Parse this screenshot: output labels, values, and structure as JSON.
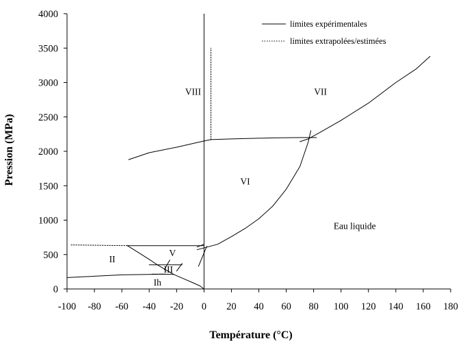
{
  "chart_data": {
    "type": "line",
    "title": "",
    "xlabel": "Température (°C)",
    "ylabel": "Pression (MPa)",
    "xlim": [
      -100,
      180
    ],
    "ylim": [
      0,
      4000
    ],
    "x_ticks": [
      -100,
      -80,
      -60,
      -40,
      -20,
      0,
      20,
      40,
      60,
      80,
      100,
      120,
      140,
      160,
      180
    ],
    "y_ticks": [
      0,
      500,
      1000,
      1500,
      2000,
      2500,
      3000,
      3500,
      4000
    ],
    "grid": false,
    "legend": {
      "position": "top-right",
      "entries": [
        {
          "label": "limites expérimentales",
          "style": "solid"
        },
        {
          "label": "limites extrapolées/estimées",
          "style": "dotted"
        }
      ]
    },
    "phase_labels": [
      {
        "text": "VIII",
        "x": -8,
        "y": 2850
      },
      {
        "text": "VII",
        "x": 85,
        "y": 2850
      },
      {
        "text": "VI",
        "x": 30,
        "y": 1550
      },
      {
        "text": "Eau liquide",
        "x": 110,
        "y": 900
      },
      {
        "text": "II",
        "x": -67,
        "y": 420
      },
      {
        "text": "V",
        "x": -23,
        "y": 510
      },
      {
        "text": "III",
        "x": -26,
        "y": 270
      },
      {
        "text": "Ih",
        "x": -34,
        "y": 80
      }
    ],
    "series": [
      {
        "style": "solid",
        "points": [
          [
            -100,
            165
          ],
          [
            -80,
            185
          ],
          [
            -60,
            205
          ],
          [
            -40,
            212
          ],
          [
            -30,
            215
          ],
          [
            -22,
            212
          ]
        ]
      },
      {
        "style": "solid",
        "points": [
          [
            -22,
            210
          ],
          [
            -15,
            150
          ],
          [
            -8,
            90
          ],
          [
            -3,
            45
          ],
          [
            0,
            0
          ]
        ]
      },
      {
        "style": "solid",
        "points": [
          [
            -56,
            630
          ],
          [
            -48,
            530
          ],
          [
            -40,
            430
          ],
          [
            -34,
            350
          ],
          [
            -28,
            280
          ],
          [
            -22,
            210
          ]
        ]
      },
      {
        "style": "solid",
        "points": [
          [
            -56,
            630
          ],
          [
            0,
            630
          ]
        ]
      },
      {
        "style": "solid",
        "points": [
          [
            -40,
            350
          ],
          [
            -16,
            350
          ]
        ]
      },
      {
        "style": "solid",
        "points": [
          [
            -38,
            215
          ],
          [
            -28,
            215
          ]
        ]
      },
      {
        "style": "solid",
        "points": [
          [
            -29,
            280
          ],
          [
            -25,
            420
          ]
        ]
      },
      {
        "style": "solid",
        "points": [
          [
            -20,
            260
          ],
          [
            -16,
            370
          ]
        ]
      },
      {
        "style": "solid",
        "points": [
          [
            -5,
            610
          ],
          [
            0,
            650
          ]
        ]
      },
      {
        "style": "solid",
        "points": [
          [
            -4,
            330
          ],
          [
            2,
            620
          ]
        ]
      },
      {
        "style": "solid",
        "points": [
          [
            -5,
            570
          ],
          [
            10,
            650
          ],
          [
            20,
            760
          ],
          [
            30,
            880
          ],
          [
            40,
            1020
          ],
          [
            50,
            1200
          ],
          [
            60,
            1450
          ],
          [
            70,
            1780
          ],
          [
            76,
            2130
          ],
          [
            78,
            2300
          ]
        ]
      },
      {
        "style": "solid",
        "points": [
          [
            -55,
            1880
          ],
          [
            -40,
            1980
          ],
          [
            -20,
            2060
          ],
          [
            0,
            2150
          ],
          [
            5,
            2170
          ],
          [
            20,
            2180
          ],
          [
            50,
            2195
          ],
          [
            70,
            2200
          ],
          [
            82,
            2200
          ]
        ]
      },
      {
        "style": "solid",
        "points": [
          [
            70,
            2140
          ],
          [
            76,
            2180
          ],
          [
            85,
            2280
          ],
          [
            100,
            2450
          ],
          [
            120,
            2700
          ],
          [
            140,
            3000
          ],
          [
            155,
            3200
          ],
          [
            165,
            3380
          ]
        ]
      },
      {
        "style": "dotted",
        "points": [
          [
            -97,
            640
          ],
          [
            -56,
            630
          ]
        ]
      },
      {
        "style": "dotted",
        "points": [
          [
            5,
            2170
          ],
          [
            5,
            3500
          ]
        ]
      }
    ]
  }
}
